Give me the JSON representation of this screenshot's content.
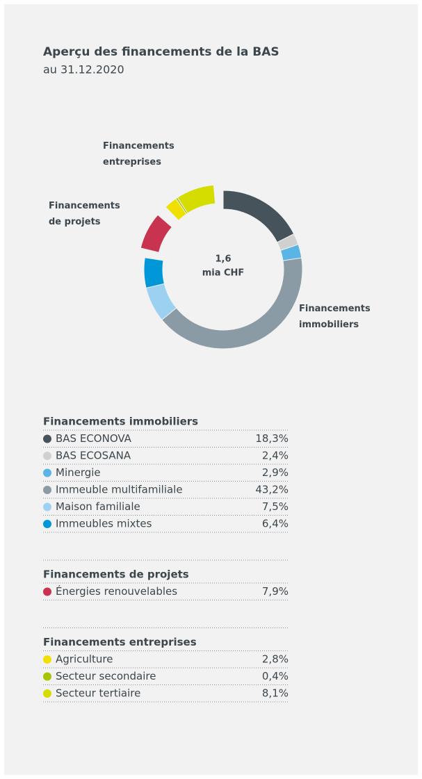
{
  "chart_data": {
    "type": "donut",
    "title": "Aperçu des financements de la BAS",
    "subtitle": "au 31.12.2020",
    "center_value": "1,6",
    "center_unit": "mia CHF",
    "groups": [
      {
        "name": "Financements immobiliers",
        "categories": [
          "BAS ECONOVA",
          "BAS ECOSANA",
          "Minergie",
          "Immeuble multifamiliale",
          "Maison familiale",
          "Immeubles mixtes"
        ],
        "values": [
          18.3,
          2.4,
          2.9,
          43.2,
          7.5,
          6.4
        ],
        "value_labels": [
          "18,3%",
          "2,4%",
          "2,9%",
          "43,2%",
          "7,5%",
          "6,4%"
        ],
        "colors": [
          "#47535a",
          "#d0d0d0",
          "#5ab4e6",
          "#8a9ba6",
          "#9dd1f2",
          "#0097d8"
        ]
      },
      {
        "name": "Financements de projets",
        "categories": [
          "Énergies renouvelables"
        ],
        "values": [
          7.9
        ],
        "value_labels": [
          "7,9%"
        ],
        "colors": [
          "#c8334f"
        ]
      },
      {
        "name": "Financements entreprises",
        "categories": [
          "Agriculture",
          "Secteur secondaire",
          "Secteur tertiaire"
        ],
        "values": [
          2.8,
          0.4,
          8.1
        ],
        "value_labels": [
          "2,8%",
          "0,4%",
          "8,1%"
        ],
        "colors": [
          "#f0e000",
          "#a8c400",
          "#d4dc00"
        ]
      }
    ]
  }
}
